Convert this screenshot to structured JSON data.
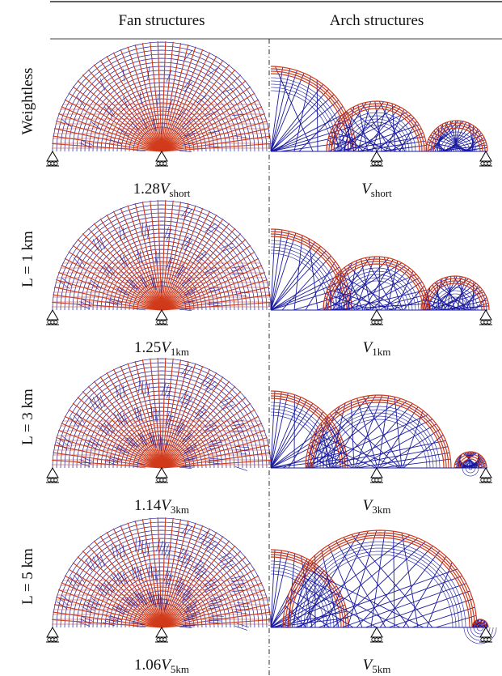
{
  "header": {
    "columns": [
      "Fan structures",
      "Arch structures"
    ]
  },
  "rows": [
    {
      "label": "Weightless",
      "fan_caption": {
        "factor": "1.28",
        "symbol": "V",
        "subscript": "short"
      },
      "arch_caption": {
        "symbol": "V",
        "subscript": "short"
      }
    },
    {
      "label": "L = 1 km",
      "fan_caption": {
        "factor": "1.25",
        "symbol": "V",
        "subscript": "1km"
      },
      "arch_caption": {
        "symbol": "V",
        "subscript": "1km"
      }
    },
    {
      "label": "L = 3 km",
      "fan_caption": {
        "factor": "1.14",
        "symbol": "V",
        "subscript": "3km"
      },
      "arch_caption": {
        "symbol": "V",
        "subscript": "3km"
      }
    },
    {
      "label": "L = 5 km",
      "fan_caption": {
        "factor": "1.06",
        "symbol": "V",
        "subscript": "5km"
      },
      "arch_caption": {
        "symbol": "V",
        "subscript": "5km"
      }
    }
  ]
}
